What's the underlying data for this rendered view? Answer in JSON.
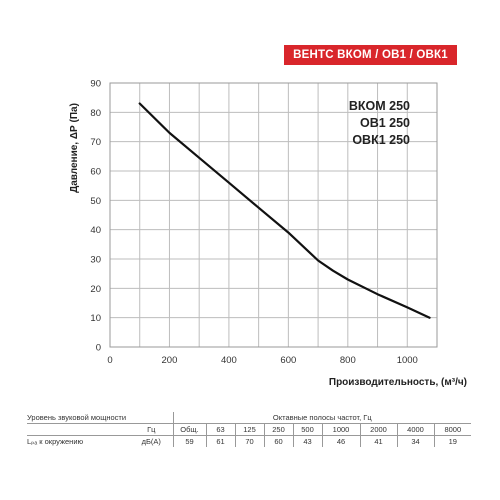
{
  "banner": "ВЕНТС ВКОМ / ОВ1 / ОВК1",
  "models": [
    "ВКОМ 250",
    "ОВ1 250",
    "ОВК1 250"
  ],
  "chart_data": {
    "type": "line",
    "xlabel": "Производительность, (м³/ч)",
    "ylabel": "Давление, ΔР (Па)",
    "xlim": [
      0,
      1100
    ],
    "ylim": [
      0,
      90
    ],
    "x_ticks": [
      0,
      200,
      400,
      600,
      800,
      1000
    ],
    "y_ticks": [
      0,
      10,
      20,
      30,
      40,
      50,
      60,
      70,
      80,
      90
    ],
    "grid": true,
    "series": [
      {
        "x": [
          100,
          200,
          300,
          400,
          500,
          600,
          700,
          750,
          800,
          900,
          1000,
          1075
        ],
        "y": [
          83,
          73,
          64.5,
          56,
          47.5,
          39,
          29.5,
          26,
          23,
          18,
          13.5,
          10
        ]
      }
    ]
  },
  "noise_table": {
    "row1_left": "Уровень звуковой мощности",
    "row1_right": "Октавные полосы частот, Гц",
    "row2_unit": "Гц",
    "headers": [
      "Общ.",
      "63",
      "125",
      "250",
      "500",
      "1000",
      "2000",
      "4000",
      "8000"
    ],
    "row3_label": "Lₚₐ к окружению",
    "row3_unit": "дБ(А)",
    "values": [
      "59",
      "61",
      "70",
      "60",
      "43",
      "46",
      "41",
      "34",
      "19"
    ]
  }
}
